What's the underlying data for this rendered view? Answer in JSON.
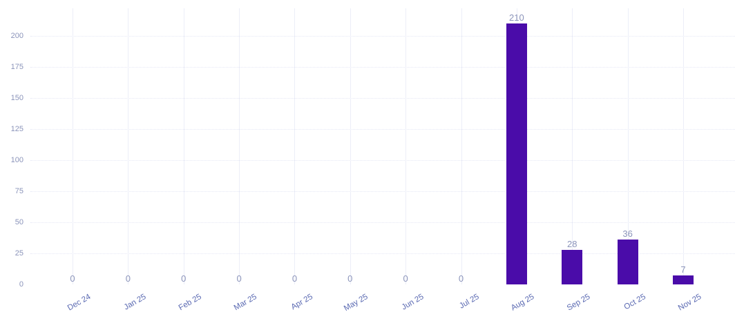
{
  "chart_data": {
    "type": "bar",
    "title": "",
    "xlabel": "",
    "ylabel": "",
    "categories": [
      "Dec 24",
      "Jan 25",
      "Feb 25",
      "Mar 25",
      "Apr 25",
      "May 25",
      "Jun 25",
      "Jul 25",
      "Aug 25",
      "Sep 25",
      "Oct 25",
      "Nov 25"
    ],
    "values": [
      0,
      0,
      0,
      0,
      0,
      0,
      0,
      0,
      210,
      28,
      36,
      7
    ],
    "yticks": [
      0,
      25,
      50,
      75,
      100,
      125,
      150,
      175,
      200
    ],
    "ylim": [
      0,
      222
    ],
    "grid": true,
    "legend_position": "none",
    "value_labels_shown": true,
    "colors": {
      "bar": "#4a0ca9",
      "value_label": "#8b94ba",
      "y_tick_label": "#8b94ba",
      "x_tick_label": "#5a69b2",
      "h_gridline": "#e5e7f5",
      "v_gridline": "#eceef8",
      "background": "#ffffff"
    }
  }
}
